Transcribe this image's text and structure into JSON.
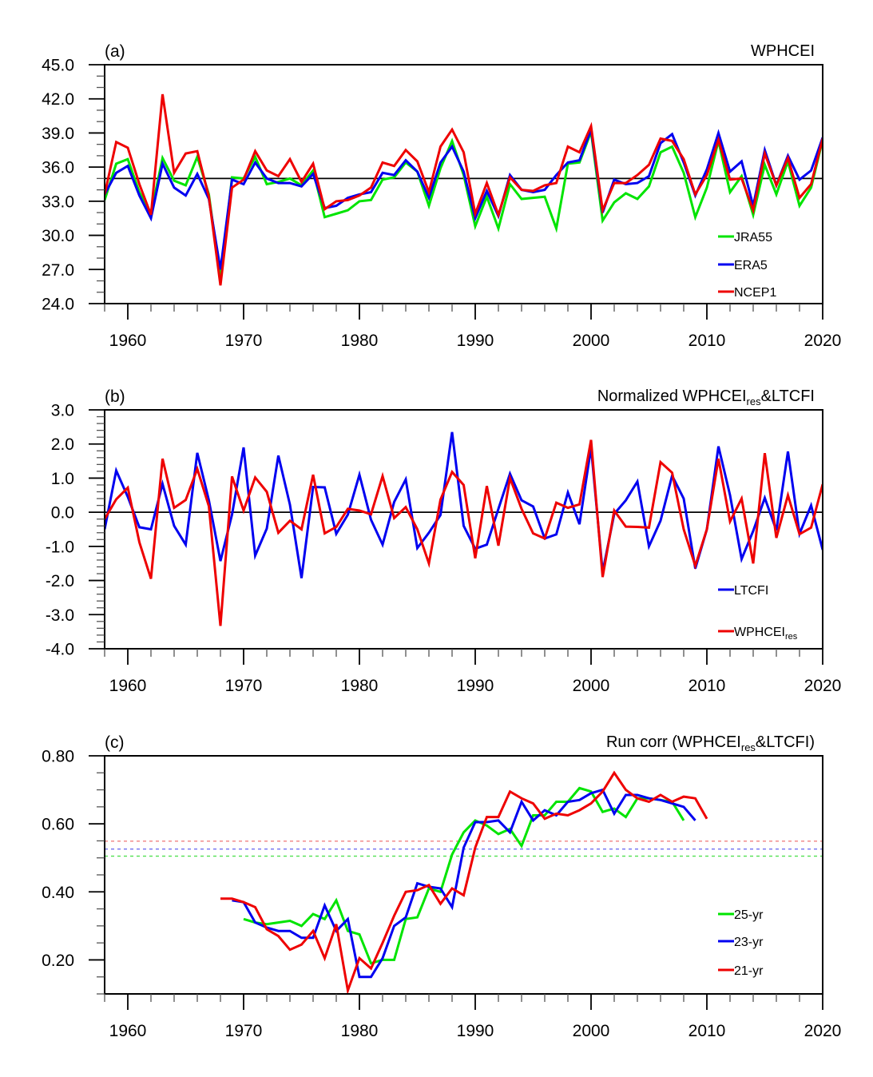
{
  "chart_data": [
    {
      "type": "line",
      "panel_label": "(a)",
      "title": "WPHCEI",
      "xlabel": "",
      "ylabel": "",
      "xlim": [
        1958,
        2020
      ],
      "ylim": [
        24.0,
        45.0
      ],
      "xticks": [
        1960,
        1970,
        1980,
        1990,
        2000,
        2010,
        2020
      ],
      "xtick_labels": [
        "1960",
        "1970",
        "1980",
        "1990",
        "2000",
        "2010",
        "2020"
      ],
      "yticks": [
        24.0,
        27.0,
        30.0,
        33.0,
        36.0,
        39.0,
        42.0,
        45.0
      ],
      "ytick_labels": [
        "24.0",
        "27.0",
        "30.0",
        "33.0",
        "36.0",
        "39.0",
        "42.0",
        "45.0"
      ],
      "reference_line": 35.0,
      "legend_position": "bottom-right",
      "x": [
        1958,
        1959,
        1960,
        1961,
        1962,
        1963,
        1964,
        1965,
        1966,
        1967,
        1968,
        1969,
        1970,
        1971,
        1972,
        1973,
        1974,
        1975,
        1976,
        1977,
        1978,
        1979,
        1980,
        1981,
        1982,
        1983,
        1984,
        1985,
        1986,
        1987,
        1988,
        1989,
        1990,
        1991,
        1992,
        1993,
        1994,
        1995,
        1996,
        1997,
        1998,
        1999,
        2000,
        2001,
        2002,
        2003,
        2004,
        2005,
        2006,
        2007,
        2008,
        2009,
        2010,
        2011,
        2012,
        2013,
        2014,
        2015,
        2016,
        2017,
        2018,
        2019,
        2020
      ],
      "series": [
        {
          "name": "JRA55",
          "color": "#00e400",
          "values": [
            33.1,
            36.3,
            36.7,
            33.8,
            31.9,
            36.8,
            34.8,
            34.4,
            36.9,
            33.6,
            26.1,
            35.1,
            35.0,
            36.9,
            34.5,
            34.7,
            35.0,
            34.4,
            35.7,
            31.6,
            31.9,
            32.2,
            33.0,
            33.1,
            34.9,
            35.1,
            36.4,
            35.6,
            32.6,
            35.9,
            38.3,
            35.3,
            30.8,
            33.4,
            30.6,
            34.5,
            33.2,
            33.3,
            33.4,
            30.6,
            36.3,
            36.4,
            39.1,
            31.3,
            32.9,
            33.7,
            33.2,
            34.3,
            37.3,
            37.8,
            35.5,
            31.6,
            34.2,
            38.3,
            33.8,
            35.2,
            31.8,
            36.2,
            33.6,
            36.5,
            32.6,
            34.2,
            38.4
          ]
        },
        {
          "name": "ERA5",
          "color": "#0000f0",
          "values": [
            33.6,
            35.5,
            36.1,
            33.5,
            31.5,
            36.3,
            34.2,
            33.5,
            35.4,
            33.2,
            27.0,
            34.9,
            34.5,
            36.4,
            35.0,
            34.6,
            34.6,
            34.3,
            35.4,
            32.4,
            32.6,
            33.3,
            33.6,
            33.8,
            35.5,
            35.3,
            36.6,
            35.6,
            33.3,
            36.4,
            37.8,
            35.6,
            31.5,
            33.9,
            31.7,
            35.3,
            34.0,
            33.8,
            34.0,
            35.3,
            36.4,
            36.6,
            39.3,
            32.0,
            34.9,
            34.5,
            34.6,
            35.2,
            38.1,
            38.9,
            36.4,
            33.5,
            35.8,
            39.0,
            35.6,
            36.5,
            32.6,
            37.5,
            34.4,
            37.0,
            34.9,
            35.7,
            38.6
          ]
        },
        {
          "name": "NCEP1",
          "color": "#ee0000",
          "values": [
            33.6,
            38.2,
            37.7,
            34.5,
            31.8,
            42.4,
            35.5,
            37.2,
            37.4,
            33.4,
            25.6,
            34.2,
            34.9,
            37.4,
            35.7,
            35.2,
            36.7,
            34.7,
            36.3,
            32.3,
            33.0,
            33.1,
            33.5,
            34.2,
            36.4,
            36.1,
            37.5,
            36.5,
            33.8,
            37.8,
            39.3,
            37.3,
            31.9,
            34.6,
            31.8,
            35.1,
            34.0,
            33.9,
            34.4,
            34.6,
            37.8,
            37.3,
            39.6,
            32.2,
            34.6,
            34.6,
            35.3,
            36.2,
            38.5,
            38.3,
            36.7,
            33.6,
            35.3,
            38.4,
            34.9,
            35.0,
            32.2,
            37.2,
            34.4,
            36.8,
            33.3,
            34.5,
            38.5
          ]
        }
      ]
    },
    {
      "type": "line",
      "panel_label": "(b)",
      "title": "Normalized WPHCEI",
      "title_subscript": "res",
      "title_suffix": "&LTCFI",
      "xlabel": "",
      "ylabel": "",
      "xlim": [
        1958,
        2020
      ],
      "ylim": [
        -4.0,
        3.0
      ],
      "xticks": [
        1960,
        1970,
        1980,
        1990,
        2000,
        2010,
        2020
      ],
      "xtick_labels": [
        "1960",
        "1970",
        "1980",
        "1990",
        "2000",
        "2010",
        "2020"
      ],
      "yticks": [
        -4.0,
        -3.0,
        -2.0,
        -1.0,
        0.0,
        1.0,
        2.0,
        3.0
      ],
      "ytick_labels": [
        "-4.0",
        "-3.0",
        "-2.0",
        "-1.0",
        "0.0",
        "1.0",
        "2.0",
        "3.0"
      ],
      "reference_line": 0.0,
      "legend_position": "bottom-right",
      "x": [
        1958,
        1959,
        1960,
        1961,
        1962,
        1963,
        1964,
        1965,
        1966,
        1967,
        1968,
        1969,
        1970,
        1971,
        1972,
        1973,
        1974,
        1975,
        1976,
        1977,
        1978,
        1979,
        1980,
        1981,
        1982,
        1983,
        1984,
        1985,
        1986,
        1987,
        1988,
        1989,
        1990,
        1991,
        1992,
        1993,
        1994,
        1995,
        1996,
        1997,
        1998,
        1999,
        2000,
        2001,
        2002,
        2003,
        2004,
        2005,
        2006,
        2007,
        2008,
        2009,
        2010,
        2011,
        2012,
        2013,
        2014,
        2015,
        2016,
        2017,
        2018,
        2019,
        2020
      ],
      "series": [
        {
          "name": "LTCFI",
          "label": "LTCFI",
          "color": "#0000f0",
          "values": [
            -0.5,
            1.22,
            0.45,
            -0.44,
            -0.5,
            0.83,
            -0.4,
            -0.95,
            1.74,
            0.35,
            -1.43,
            -0.07,
            1.9,
            -1.27,
            -0.48,
            1.66,
            0.22,
            -1.93,
            0.74,
            0.73,
            -0.63,
            -0.07,
            1.1,
            -0.22,
            -0.95,
            0.3,
            0.96,
            -1.05,
            -0.6,
            -0.08,
            2.35,
            -0.4,
            -1.07,
            -0.95,
            0.1,
            1.13,
            0.35,
            0.17,
            -0.77,
            -0.65,
            0.58,
            -0.35,
            1.9,
            -1.75,
            -0.05,
            0.35,
            0.9,
            -1.0,
            -0.25,
            1.07,
            0.4,
            -1.65,
            -0.5,
            1.93,
            0.5,
            -1.37,
            -0.55,
            0.42,
            -0.53,
            1.78,
            -0.63,
            0.2,
            -1.1
          ]
        },
        {
          "name": "WPHCEI_res",
          "label": "WPHCEI",
          "label_subscript": "res",
          "color": "#ee0000",
          "values": [
            -0.2,
            0.38,
            0.72,
            -0.88,
            -1.95,
            1.57,
            0.13,
            0.36,
            1.27,
            0.18,
            -3.33,
            1.05,
            0.05,
            1.02,
            0.6,
            -0.6,
            -0.25,
            -0.5,
            1.1,
            -0.62,
            -0.43,
            0.1,
            0.05,
            -0.06,
            1.06,
            -0.17,
            0.15,
            -0.5,
            -1.5,
            0.37,
            1.18,
            0.8,
            -1.35,
            0.77,
            -0.98,
            1.0,
            0.1,
            -0.62,
            -0.77,
            0.28,
            0.13,
            0.23,
            2.12,
            -1.9,
            0.05,
            -0.42,
            -0.43,
            -0.45,
            1.47,
            1.16,
            -0.5,
            -1.57,
            -0.5,
            1.57,
            -0.27,
            0.4,
            -1.5,
            1.73,
            -0.75,
            0.5,
            -0.64,
            -0.45,
            0.82
          ]
        }
      ]
    },
    {
      "type": "line",
      "panel_label": "(c)",
      "title": "Run corr (WPHCEI",
      "title_subscript": "res",
      "title_suffix": "&LTCFI)",
      "xlabel": "",
      "ylabel": "",
      "xlim": [
        1958,
        2020
      ],
      "ylim": [
        0.1,
        0.8
      ],
      "xticks": [
        1960,
        1970,
        1980,
        1990,
        2000,
        2010,
        2020
      ],
      "xtick_labels": [
        "1960",
        "1970",
        "1980",
        "1990",
        "2000",
        "2010",
        "2020"
      ],
      "yticks": [
        0.2,
        0.4,
        0.6,
        0.8
      ],
      "ytick_labels": [
        "0.20",
        "0.40",
        "0.60",
        "0.80"
      ],
      "legend_position": "bottom-right",
      "significance_lines": [
        {
          "name": "21-yr threshold",
          "value": 0.549,
          "color": "#f08080"
        },
        {
          "name": "23-yr threshold",
          "value": 0.526,
          "color": "#7070f0"
        },
        {
          "name": "25-yr threshold",
          "value": 0.505,
          "color": "#50e050"
        }
      ],
      "series": [
        {
          "name": "25-yr",
          "color": "#00e400",
          "x": [
            1970,
            1971,
            1972,
            1973,
            1974,
            1975,
            1976,
            1977,
            1978,
            1979,
            1980,
            1981,
            1982,
            1983,
            1984,
            1985,
            1986,
            1987,
            1988,
            1989,
            1990,
            1991,
            1992,
            1993,
            1994,
            1995,
            1996,
            1997,
            1998,
            1999,
            2000,
            2001,
            2002,
            2003,
            2004,
            2005,
            2006,
            2007,
            2008
          ],
          "values": [
            0.32,
            0.31,
            0.305,
            0.31,
            0.315,
            0.3,
            0.335,
            0.32,
            0.375,
            0.285,
            0.275,
            0.19,
            0.2,
            0.2,
            0.32,
            0.325,
            0.41,
            0.4,
            0.51,
            0.575,
            0.61,
            0.595,
            0.57,
            0.585,
            0.535,
            0.625,
            0.625,
            0.665,
            0.665,
            0.705,
            0.695,
            0.635,
            0.645,
            0.62,
            0.675,
            0.675,
            0.67,
            0.665,
            0.61
          ]
        },
        {
          "name": "23-yr",
          "color": "#0000f0",
          "x": [
            1969,
            1970,
            1971,
            1972,
            1973,
            1974,
            1975,
            1976,
            1977,
            1978,
            1979,
            1980,
            1981,
            1982,
            1983,
            1984,
            1985,
            1986,
            1987,
            1988,
            1989,
            1990,
            1991,
            1992,
            1993,
            1994,
            1995,
            1996,
            1997,
            1998,
            1999,
            2000,
            2001,
            2002,
            2003,
            2004,
            2005,
            2006,
            2007,
            2008,
            2009
          ],
          "values": [
            0.375,
            0.37,
            0.31,
            0.295,
            0.285,
            0.285,
            0.265,
            0.265,
            0.36,
            0.285,
            0.32,
            0.15,
            0.15,
            0.205,
            0.3,
            0.325,
            0.425,
            0.415,
            0.41,
            0.355,
            0.53,
            0.605,
            0.605,
            0.61,
            0.575,
            0.665,
            0.61,
            0.64,
            0.625,
            0.665,
            0.67,
            0.69,
            0.7,
            0.63,
            0.685,
            0.685,
            0.675,
            0.67,
            0.66,
            0.65,
            0.61
          ]
        },
        {
          "name": "21-yr",
          "color": "#ee0000",
          "x": [
            1968,
            1969,
            1970,
            1971,
            1972,
            1973,
            1974,
            1975,
            1976,
            1977,
            1978,
            1979,
            1980,
            1981,
            1982,
            1983,
            1984,
            1985,
            1986,
            1987,
            1988,
            1989,
            1990,
            1991,
            1992,
            1993,
            1994,
            1995,
            1996,
            1997,
            1998,
            1999,
            2000,
            2001,
            2002,
            2003,
            2004,
            2005,
            2006,
            2007,
            2008,
            2009,
            2010
          ],
          "values": [
            0.38,
            0.38,
            0.37,
            0.355,
            0.29,
            0.27,
            0.23,
            0.245,
            0.285,
            0.205,
            0.305,
            0.11,
            0.205,
            0.175,
            0.25,
            0.33,
            0.4,
            0.405,
            0.42,
            0.365,
            0.41,
            0.39,
            0.53,
            0.62,
            0.62,
            0.695,
            0.675,
            0.66,
            0.615,
            0.63,
            0.625,
            0.64,
            0.66,
            0.695,
            0.75,
            0.7,
            0.675,
            0.665,
            0.685,
            0.665,
            0.68,
            0.675,
            0.615
          ]
        }
      ]
    }
  ]
}
